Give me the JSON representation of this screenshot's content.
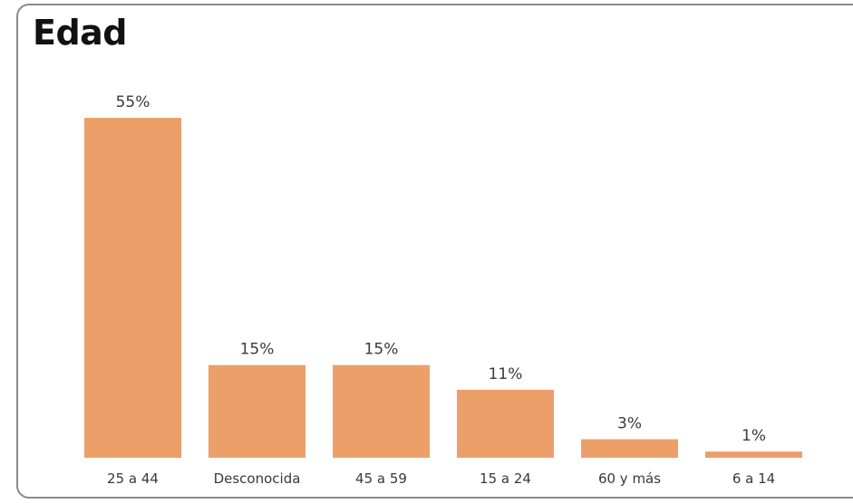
{
  "chart_data": {
    "type": "bar",
    "title": "Edad",
    "categories": [
      "25 a 44",
      "Desconocida",
      "45 a 59",
      "15 a 24",
      "60 y más",
      "6 a 14"
    ],
    "values": [
      55,
      15,
      15,
      11,
      3,
      1
    ],
    "data_labels": [
      "55%",
      "15%",
      "15%",
      "11%",
      "3%",
      "1%"
    ],
    "ylim": [
      0,
      55
    ],
    "grid": false,
    "legend": "none",
    "bar_color": "#ED9F6A"
  }
}
